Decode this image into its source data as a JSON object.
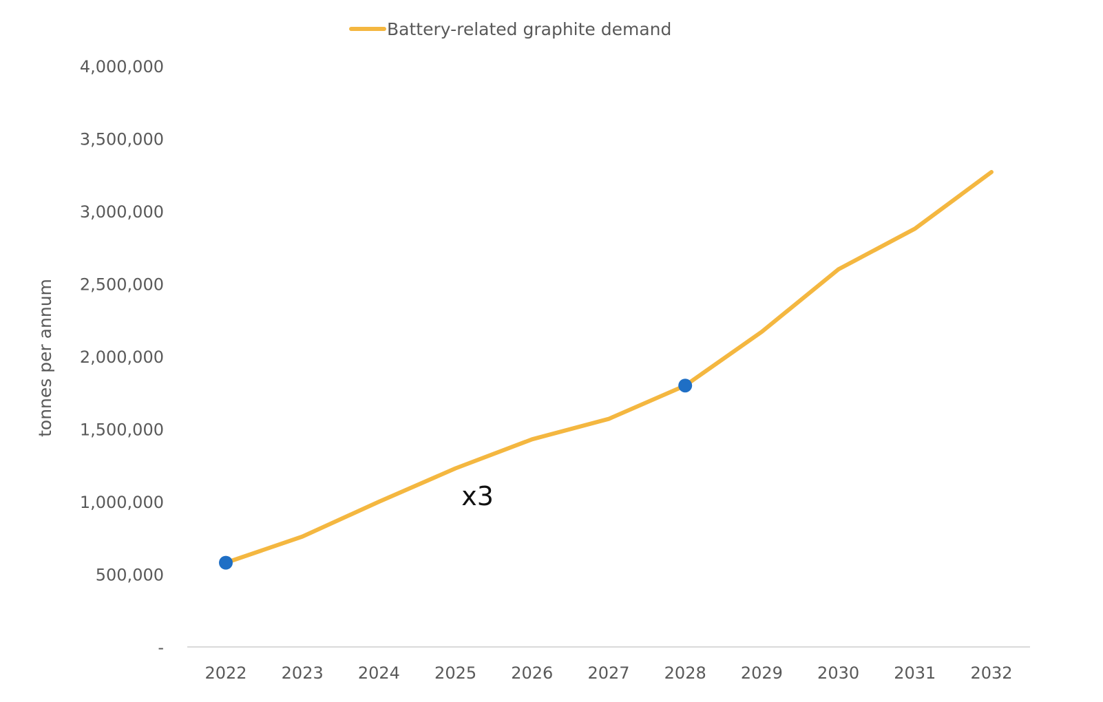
{
  "chart_data": {
    "type": "line",
    "title": "",
    "xlabel": "",
    "ylabel": "tonnes per annum",
    "categories": [
      "2022",
      "2023",
      "2024",
      "2025",
      "2026",
      "2027",
      "2028",
      "2029",
      "2030",
      "2031",
      "2032"
    ],
    "series": [
      {
        "name": "Battery-related graphite demand",
        "color": "#F4B740",
        "values": [
          580000,
          760000,
          1000000,
          1230000,
          1430000,
          1570000,
          1800000,
          2170000,
          2600000,
          2880000,
          3270000
        ]
      }
    ],
    "highlight_points": [
      {
        "category": "2022",
        "value": 580000
      },
      {
        "category": "2028",
        "value": 1800000
      }
    ],
    "highlight_color": "#1F6FC5",
    "annotation": {
      "text": "x3",
      "category": "2025",
      "value": 1080000
    },
    "ylim": [
      0,
      4000000
    ],
    "yticks": [
      {
        "value": 0,
        "label": "-"
      },
      {
        "value": 500000,
        "label": "500,000"
      },
      {
        "value": 1000000,
        "label": "1,000,000"
      },
      {
        "value": 1500000,
        "label": "1,500,000"
      },
      {
        "value": 2000000,
        "label": "2,000,000"
      },
      {
        "value": 2500000,
        "label": "2,500,000"
      },
      {
        "value": 3000000,
        "label": "3,000,000"
      },
      {
        "value": 3500000,
        "label": "3,500,000"
      },
      {
        "value": 4000000,
        "label": "4,000,000"
      }
    ],
    "grid": false,
    "legend_position": "top"
  }
}
